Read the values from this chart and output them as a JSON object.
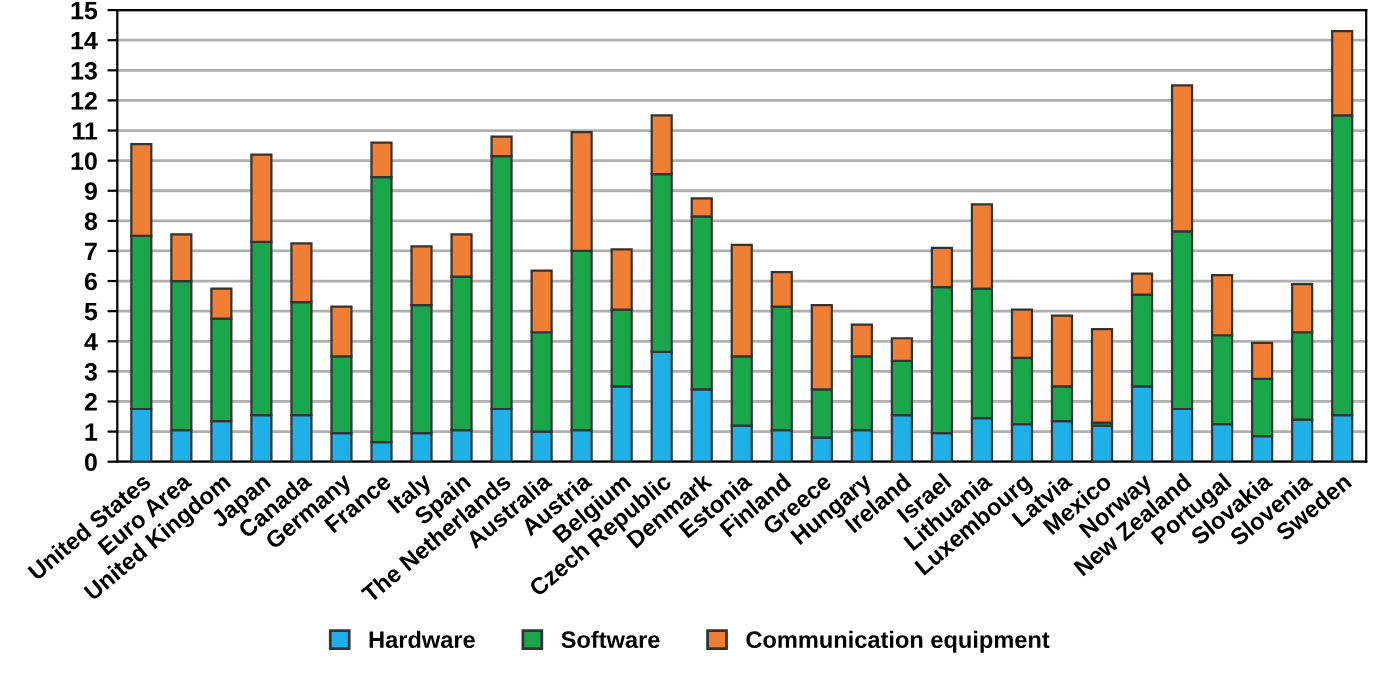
{
  "chart_data": {
    "type": "bar",
    "stacked": true,
    "categories": [
      "United States",
      "Euro Area",
      "United Kingdom",
      "Japan",
      "Canada",
      "Germany",
      "France",
      "Italy",
      "Spain",
      "The Netherlands",
      "Australia",
      "Austria",
      "Belgium",
      "Czech Republic",
      "Denmark",
      "Estonia",
      "Finland",
      "Greece",
      "Hungary",
      "Ireland",
      "Israel",
      "Lithuania",
      "Luxembourg",
      "Latvia",
      "Mexico",
      "Norway",
      "New Zealand",
      "Portugal",
      "Slovakia",
      "Slovenia",
      "Sweden"
    ],
    "series": [
      {
        "name": "Hardware",
        "color": "#1fb0e8",
        "values": [
          1.75,
          1.05,
          1.35,
          1.55,
          1.55,
          0.95,
          0.65,
          0.95,
          1.05,
          1.75,
          1.0,
          1.05,
          2.5,
          3.65,
          2.4,
          1.2,
          1.05,
          0.8,
          1.05,
          1.55,
          0.95,
          1.45,
          1.25,
          1.35,
          1.2,
          2.5,
          1.75,
          1.25,
          0.85,
          1.4,
          1.55
        ]
      },
      {
        "name": "Software",
        "color": "#1aa64a",
        "values": [
          5.75,
          4.95,
          3.4,
          5.75,
          3.75,
          2.55,
          8.8,
          4.25,
          5.1,
          8.4,
          3.3,
          5.95,
          2.55,
          5.9,
          5.75,
          2.3,
          4.1,
          1.6,
          2.45,
          1.8,
          4.85,
          4.3,
          2.2,
          1.15,
          0.1,
          3.05,
          5.9,
          2.95,
          1.9,
          2.9,
          9.95
        ]
      },
      {
        "name": "Communication equipment",
        "color": "#ef7f35",
        "values": [
          3.05,
          1.55,
          1.0,
          2.9,
          1.95,
          1.65,
          1.15,
          1.95,
          1.4,
          0.65,
          2.05,
          3.95,
          2.0,
          1.95,
          0.6,
          3.7,
          1.15,
          2.8,
          1.05,
          0.75,
          1.3,
          2.8,
          1.6,
          2.35,
          3.1,
          0.7,
          4.85,
          2.0,
          1.2,
          1.6,
          2.8
        ]
      }
    ],
    "ylim": [
      0,
      15
    ],
    "yticks": [
      0,
      1,
      2,
      3,
      4,
      5,
      6,
      7,
      8,
      9,
      10,
      11,
      12,
      13,
      14,
      15
    ],
    "grid": "y",
    "legend": "bottom"
  }
}
